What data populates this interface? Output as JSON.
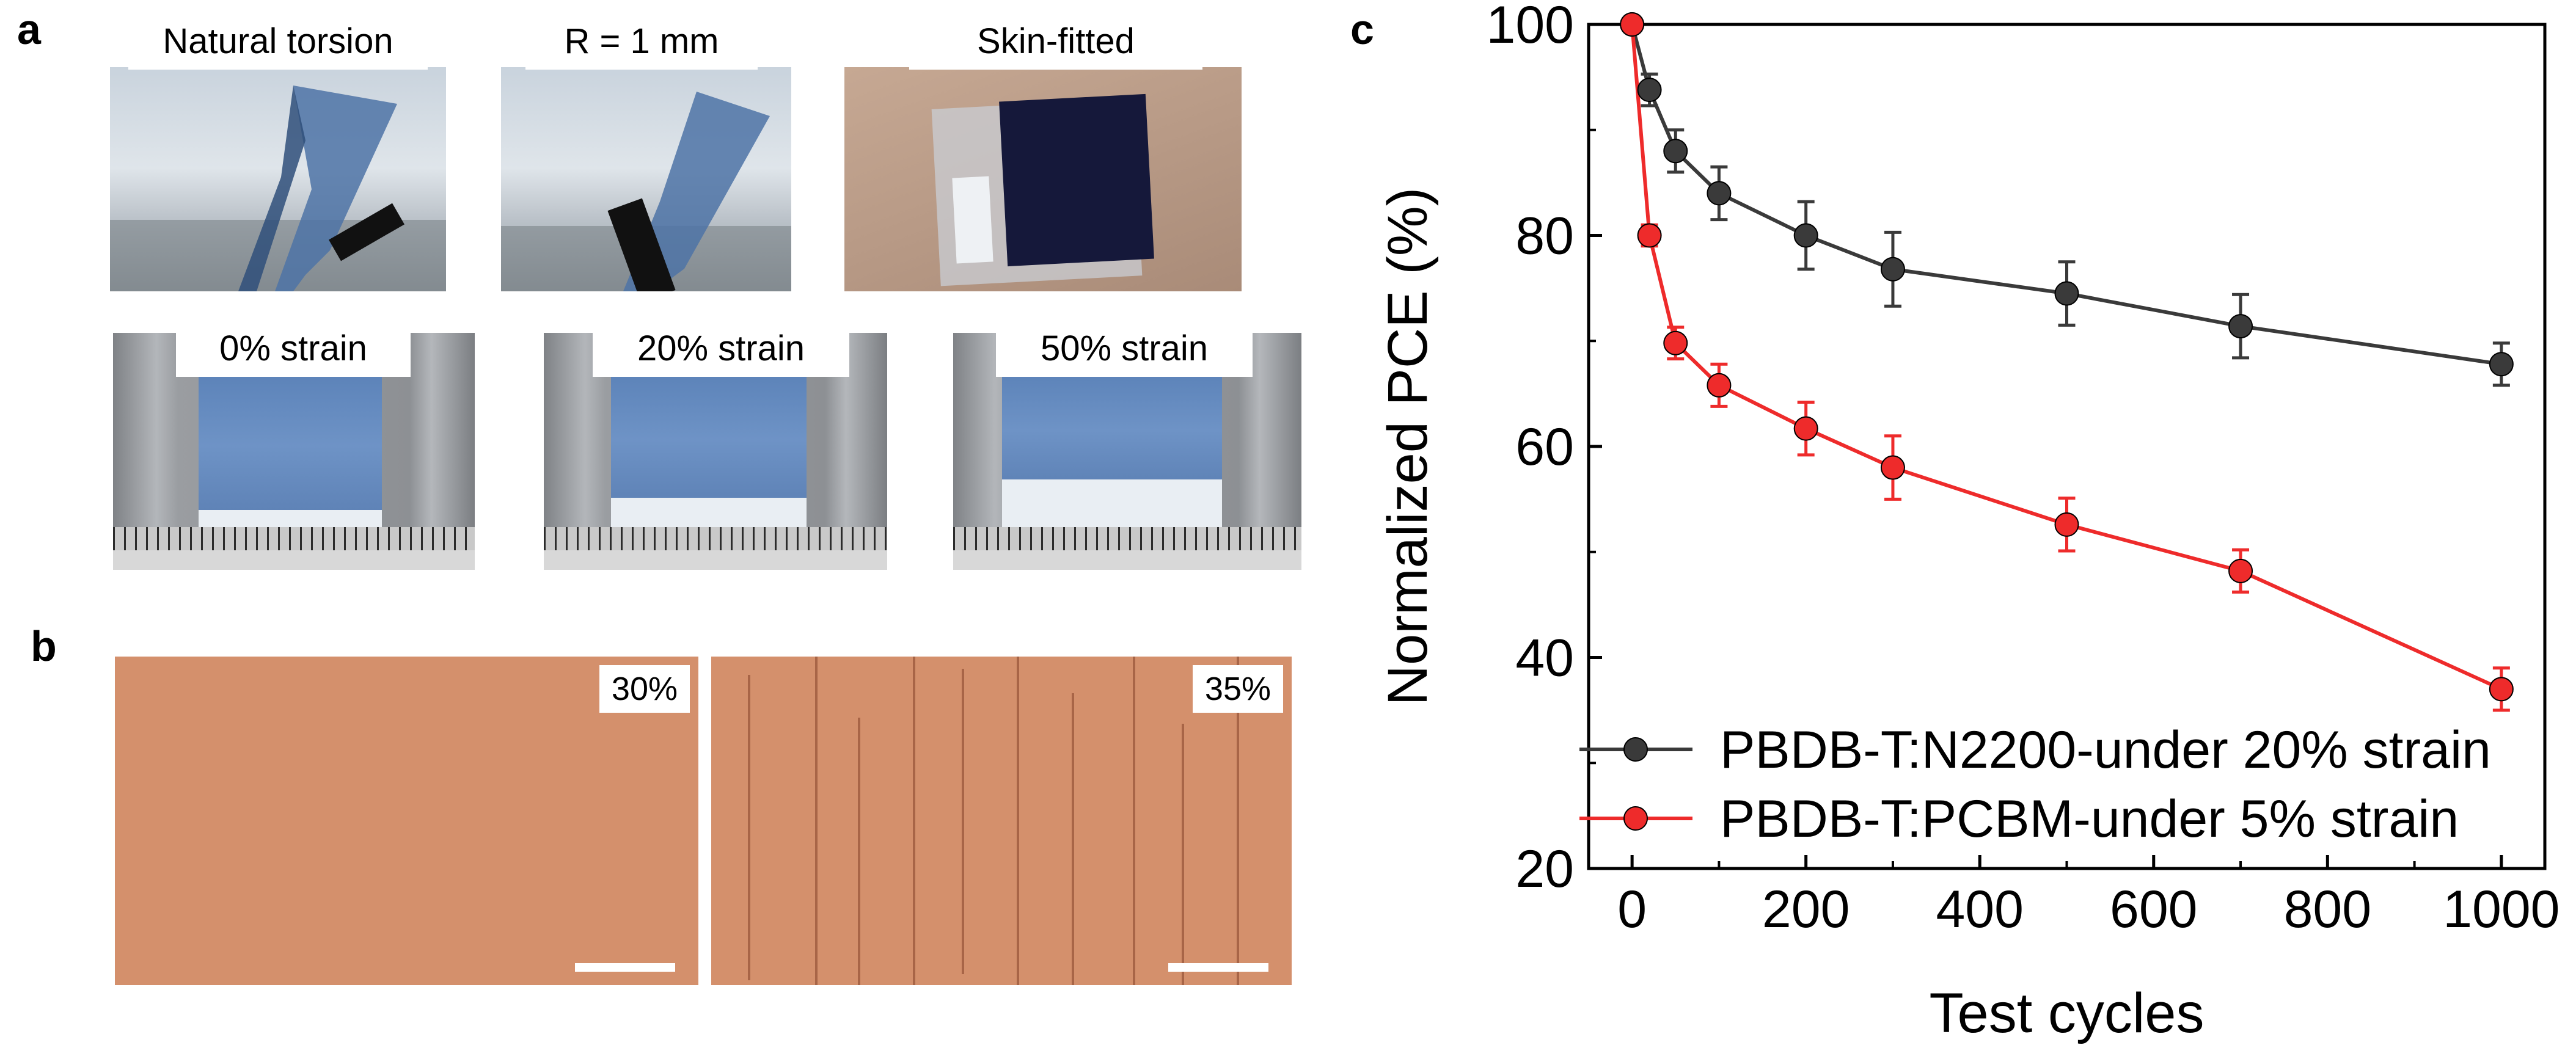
{
  "panels": {
    "a": {
      "letter": "a",
      "photos": [
        {
          "label": "Natural torsion"
        },
        {
          "label": "R = 1 mm"
        },
        {
          "label": "Skin-fitted"
        },
        {
          "label": "0% strain"
        },
        {
          "label": "20% strain"
        },
        {
          "label": "50% strain"
        }
      ]
    },
    "b": {
      "letter": "b",
      "images": [
        {
          "label": "30%"
        },
        {
          "label": "35%"
        }
      ]
    },
    "c": {
      "letter": "c"
    }
  },
  "colors": {
    "series_black": "#3a3a3a",
    "series_red": "#ee2b2b",
    "microscope": "#d4906c"
  },
  "chart_data": {
    "type": "line",
    "xlabel": "Test cycles",
    "ylabel": "Normalized PCE (%)",
    "xlim": [
      -50,
      1050
    ],
    "ylim": [
      20,
      100
    ],
    "xticks": [
      0,
      200,
      400,
      600,
      800,
      1000
    ],
    "yticks": [
      20,
      40,
      60,
      80,
      100
    ],
    "legend_position": "bottom-left",
    "series": [
      {
        "name": "PBDB-T:N2200-under 20% strain",
        "color": "#3a3a3a",
        "x": [
          0,
          20,
          50,
          100,
          200,
          300,
          500,
          700,
          1000
        ],
        "y": [
          100,
          93.8,
          88,
          84,
          80,
          76.8,
          74.5,
          71.4,
          67.8
        ],
        "err": [
          0,
          1.5,
          2.0,
          2.5,
          3.2,
          3.5,
          3.0,
          3.0,
          2.0
        ]
      },
      {
        "name": "PBDB-T:PCBM-under 5% strain",
        "color": "#ee2b2b",
        "x": [
          0,
          20,
          50,
          100,
          200,
          300,
          500,
          700,
          1000
        ],
        "y": [
          100,
          80,
          69.8,
          65.8,
          61.7,
          58,
          52.6,
          48.2,
          37
        ],
        "err": [
          0,
          1.0,
          1.5,
          2.0,
          2.5,
          3.0,
          2.5,
          2.0,
          2.0
        ]
      }
    ]
  }
}
